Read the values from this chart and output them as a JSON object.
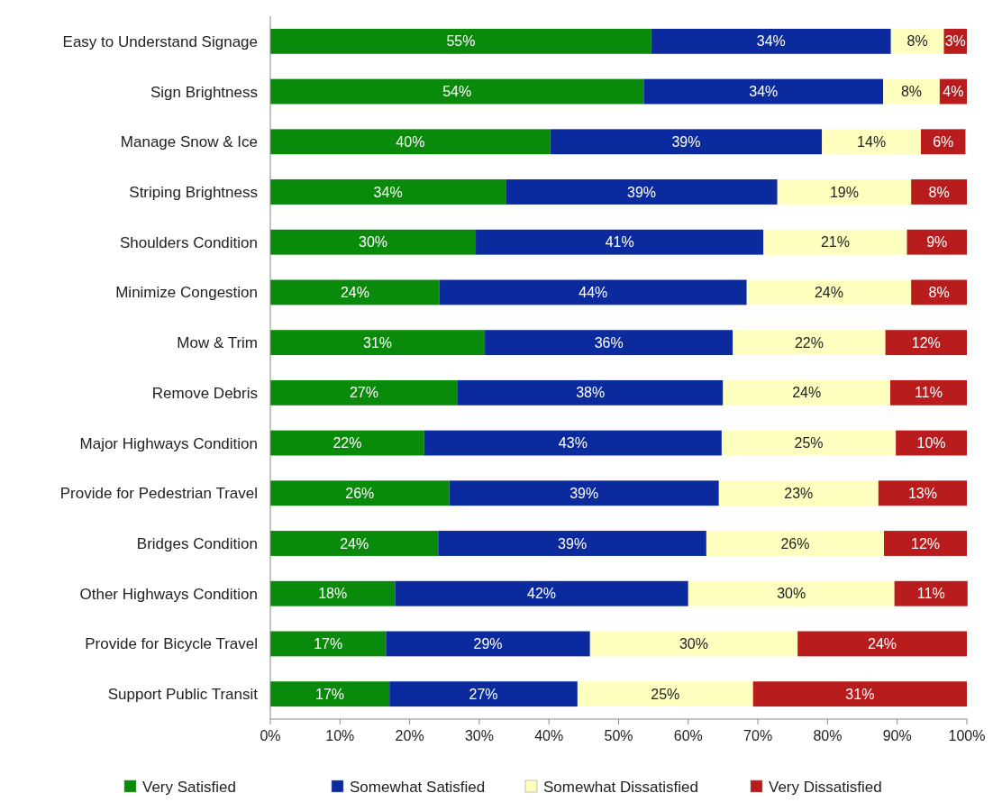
{
  "chart_data": {
    "type": "bar",
    "orientation": "horizontal",
    "stacked": true,
    "categories": [
      "Easy to Understand Signage",
      "Sign Brightness",
      "Manage Snow & Ice",
      "Striping Brightness",
      "Shoulders Condition",
      "Minimize Congestion",
      "Mow & Trim",
      "Remove Debris",
      "Major Highways Condition",
      "Provide for Pedestrian Travel",
      "Bridges Condition",
      "Other Highways Condition",
      "Provide for Bicycle Travel",
      "Support Public Transit"
    ],
    "series": [
      {
        "name": "Very Satisfied",
        "color": "#0a8a0a",
        "values": [
          54.7,
          53.6,
          40.2,
          33.8,
          29.5,
          24.3,
          30.8,
          26.9,
          22.1,
          25.7,
          24.1,
          17.9,
          16.6,
          17.1
        ],
        "value_labels": [
          "55%",
          "54%",
          "40%",
          "34%",
          "30%",
          "24%",
          "31%",
          "27%",
          "22%",
          "26%",
          "24%",
          "18%",
          "17%",
          "17%"
        ]
      },
      {
        "name": "Somewhat Satisfied",
        "color": "#0a2a9e",
        "values": [
          34.4,
          34.4,
          39.0,
          39.0,
          41.3,
          44.1,
          35.6,
          38.1,
          42.7,
          38.7,
          38.5,
          42.1,
          29.3,
          27.0
        ],
        "value_labels": [
          "34%",
          "34%",
          "39%",
          "39%",
          "41%",
          "44%",
          "36%",
          "38%",
          "43%",
          "39%",
          "39%",
          "42%",
          "29%",
          "27%"
        ]
      },
      {
        "name": "Somewhat Dissatisfied",
        "color": "#ffffc0",
        "values": [
          7.6,
          8.1,
          14.2,
          19.2,
          20.6,
          23.6,
          21.9,
          24.0,
          25.0,
          22.9,
          25.5,
          29.6,
          29.8,
          25.2
        ],
        "value_labels": [
          "8%",
          "8%",
          "14%",
          "19%",
          "21%",
          "24%",
          "22%",
          "24%",
          "25%",
          "23%",
          "26%",
          "30%",
          "30%",
          "25%"
        ]
      },
      {
        "name": "Very Dissatisfied",
        "color": "#b81c1c",
        "values": [
          3.3,
          3.9,
          6.4,
          8.0,
          8.6,
          8.0,
          11.7,
          11.0,
          10.2,
          12.7,
          11.9,
          10.5,
          24.3,
          30.7
        ],
        "value_labels": [
          "3%",
          "4%",
          "6%",
          "8%",
          "9%",
          "8%",
          "12%",
          "11%",
          "10%",
          "13%",
          "12%",
          "11%",
          "24%",
          "31%"
        ]
      }
    ],
    "xlim": [
      0,
      100
    ],
    "xticks": [
      {
        "value": 0,
        "label": "0%"
      },
      {
        "value": 10,
        "label": "10%"
      },
      {
        "value": 20,
        "label": "20%"
      },
      {
        "value": 30,
        "label": "30%"
      },
      {
        "value": 40,
        "label": "40%"
      },
      {
        "value": 50,
        "label": "50%"
      },
      {
        "value": 60,
        "label": "60%"
      },
      {
        "value": 70,
        "label": "70%"
      },
      {
        "value": 80,
        "label": "80%"
      },
      {
        "value": 90,
        "label": "90%"
      },
      {
        "value": 100,
        "label": "100%"
      }
    ],
    "legend": "bottom"
  }
}
